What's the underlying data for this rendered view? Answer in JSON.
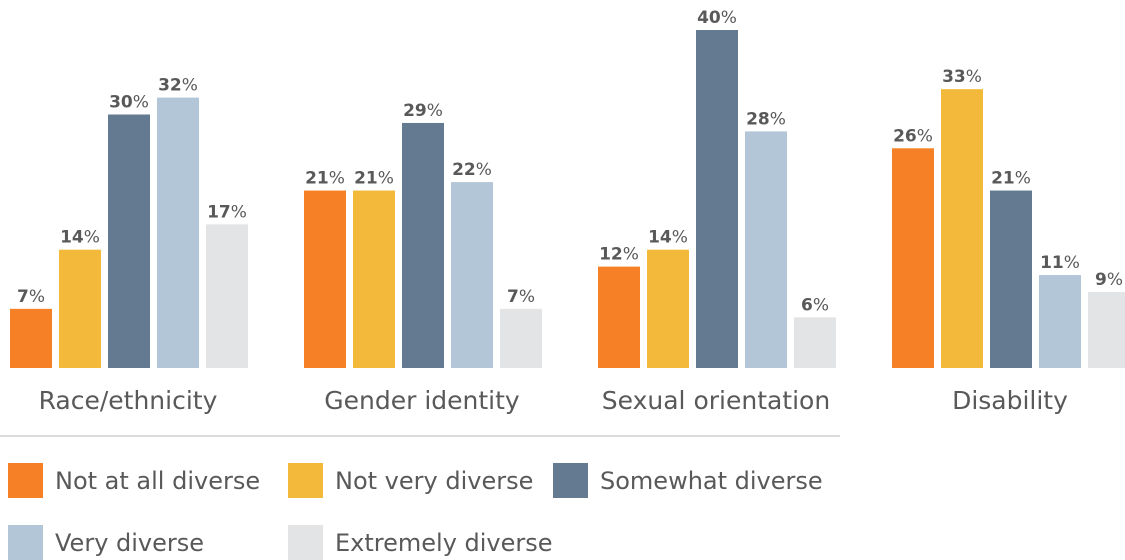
{
  "chart_data": {
    "type": "bar",
    "categories": [
      "Race/ethnicity",
      "Gender identity",
      "Sexual orientation",
      "Disability"
    ],
    "series": [
      {
        "name": "Not at all diverse",
        "color": "#F58025",
        "values": [
          7,
          21,
          12,
          26
        ]
      },
      {
        "name": "Not very diverse",
        "color": "#F2B93B",
        "values": [
          14,
          21,
          14,
          33
        ]
      },
      {
        "name": "Somewhat diverse",
        "color": "#647A91",
        "values": [
          30,
          29,
          40,
          21
        ]
      },
      {
        "name": "Very diverse",
        "color": "#B3C6D7",
        "values": [
          32,
          22,
          28,
          11
        ]
      },
      {
        "name": "Extremely diverse",
        "color": "#E3E4E6",
        "values": [
          17,
          7,
          6,
          9
        ]
      }
    ],
    "value_suffix": "%",
    "ylim": [
      0,
      40
    ],
    "grid": false,
    "legend_position": "bottom"
  }
}
